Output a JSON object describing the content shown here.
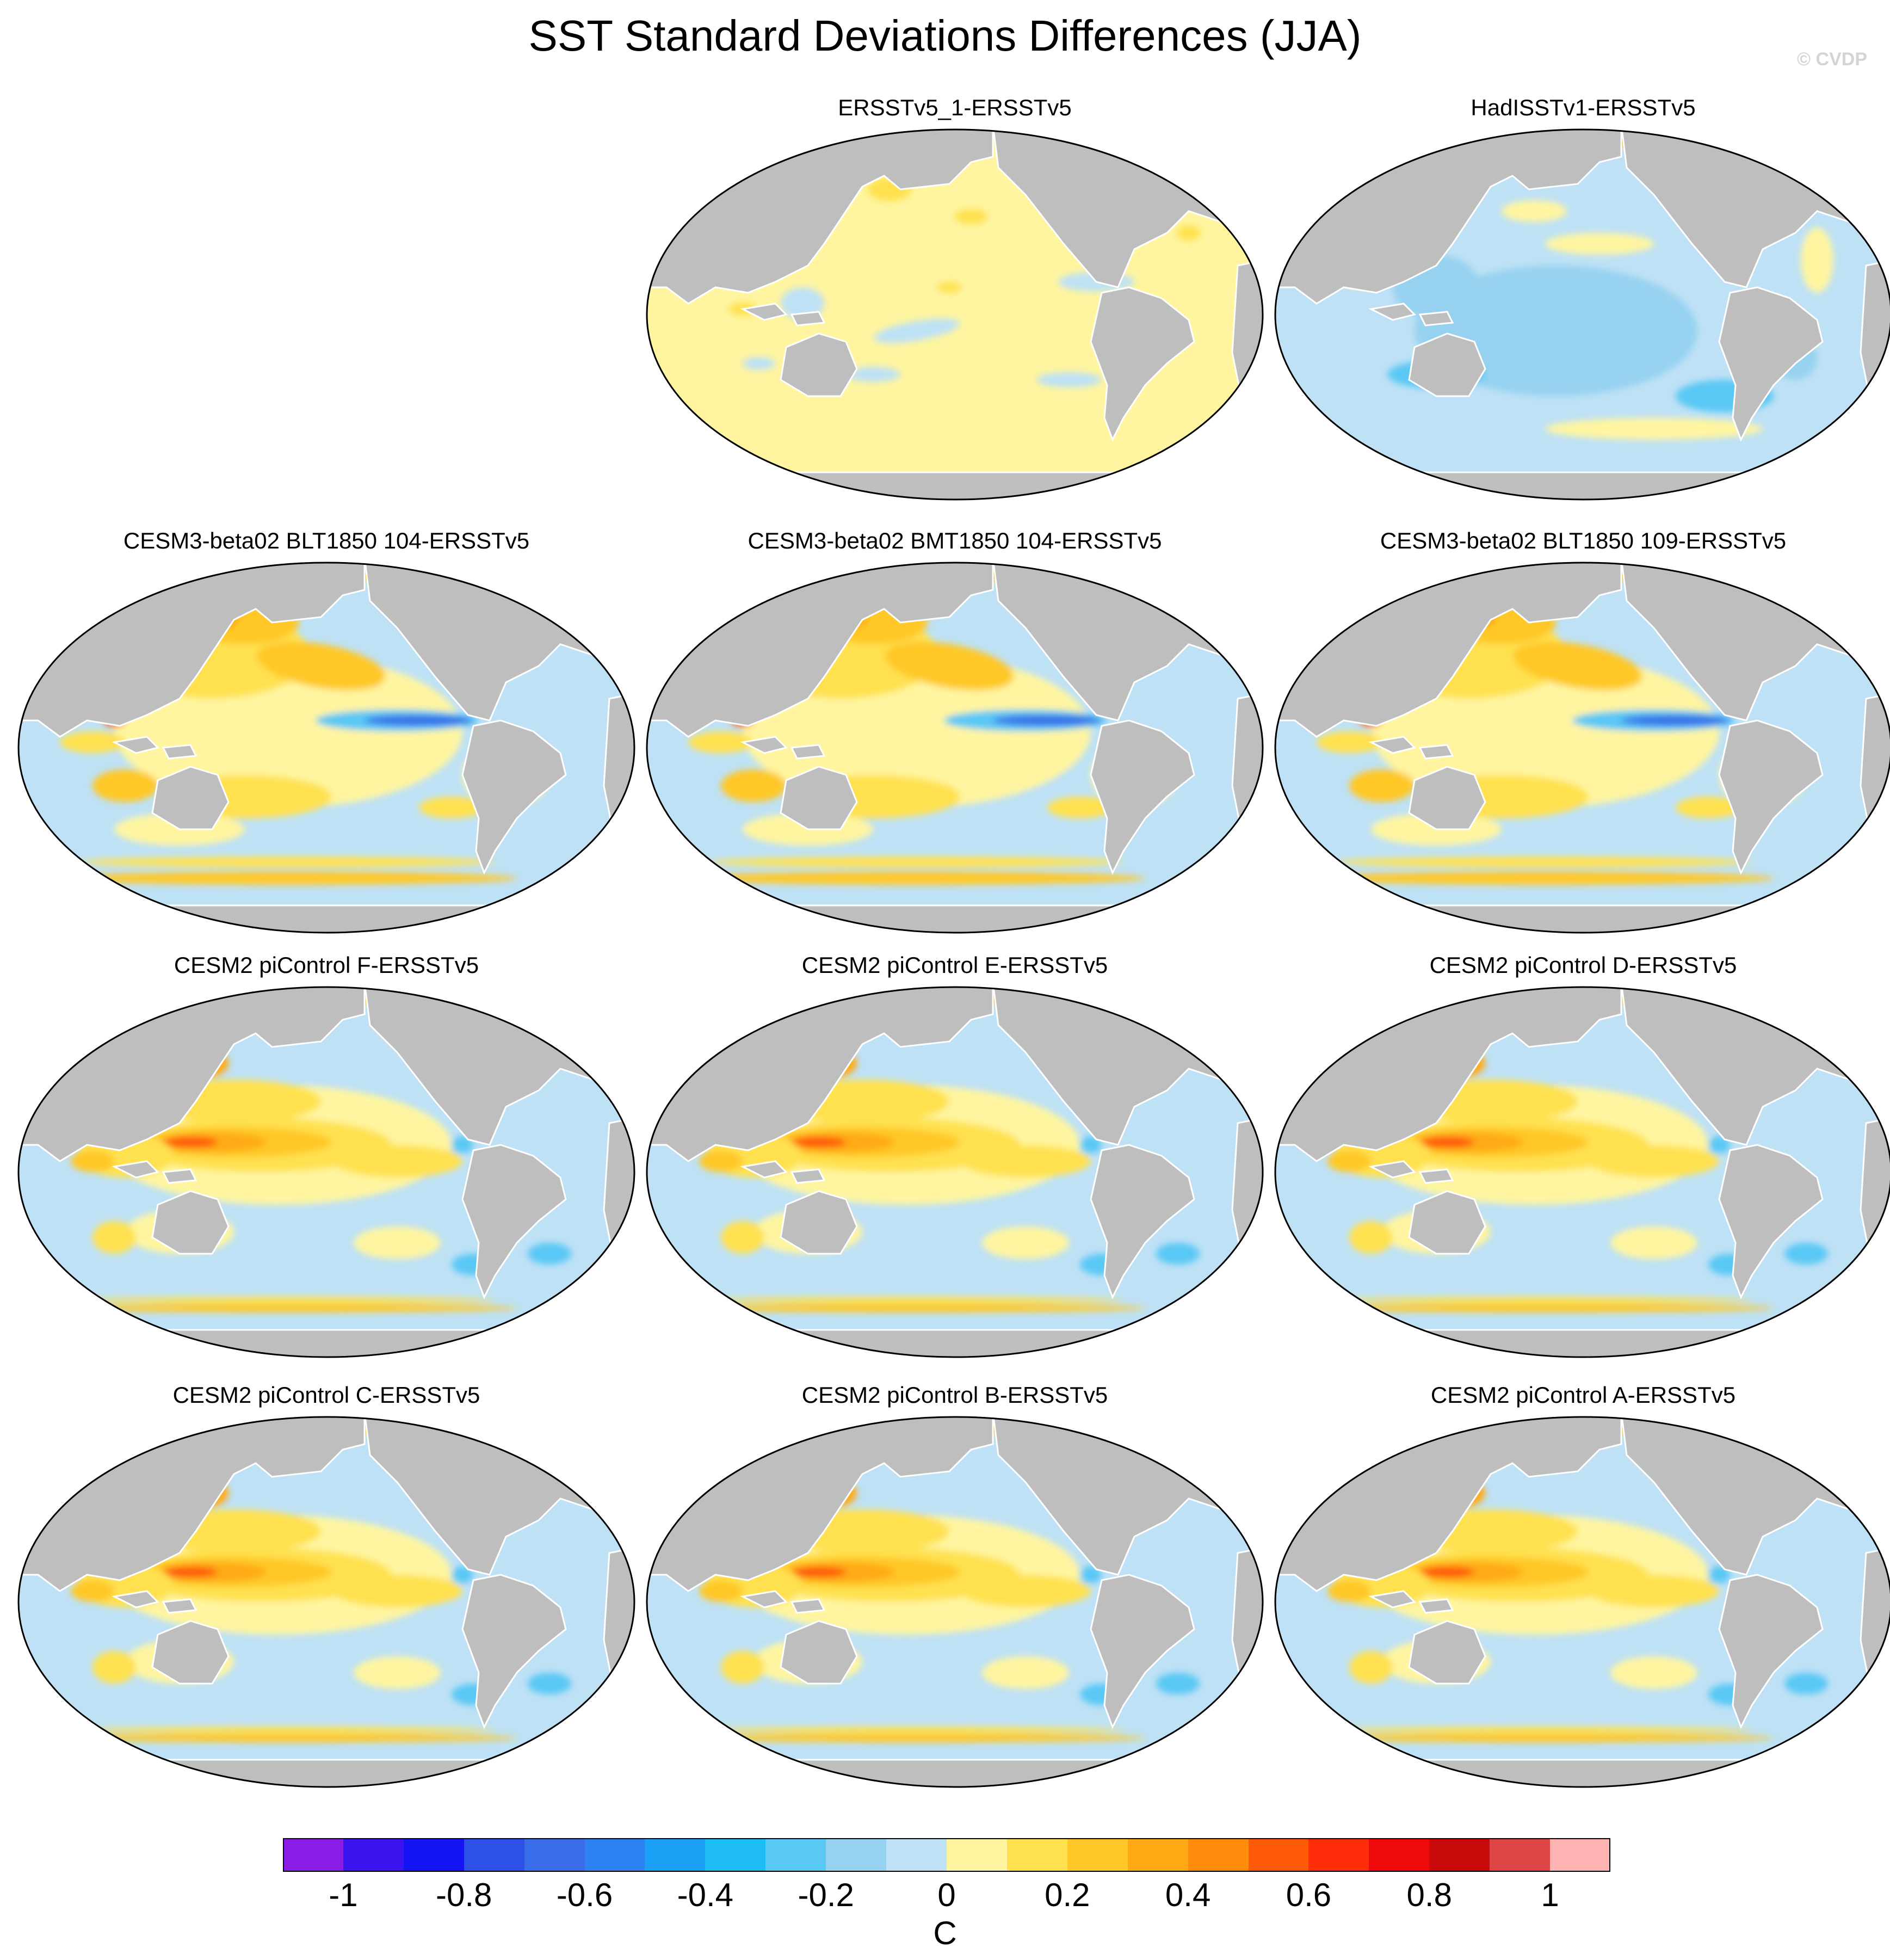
{
  "title": "SST Standard Deviations Differences (JJA)",
  "watermark": "© CVDP",
  "panels": [
    {
      "title": "ERSSTv5_1-ERSSTv5",
      "pattern": "ersst"
    },
    {
      "title": "HadISSTv1-ERSSTv5",
      "pattern": "hadisst"
    },
    {
      "title": "CESM3-beta02 BLT1850 104-ERSSTv5",
      "pattern": "cesm3"
    },
    {
      "title": "CESM3-beta02 BMT1850 104-ERSSTv5",
      "pattern": "cesm3"
    },
    {
      "title": "CESM3-beta02 BLT1850 109-ERSSTv5",
      "pattern": "cesm3"
    },
    {
      "title": "CESM2 piControl F-ERSSTv5",
      "pattern": "cesm2"
    },
    {
      "title": "CESM2 piControl E-ERSSTv5",
      "pattern": "cesm2"
    },
    {
      "title": "CESM2 piControl D-ERSSTv5",
      "pattern": "cesm2"
    },
    {
      "title": "CESM2 piControl C-ERSSTv5",
      "pattern": "cesm2"
    },
    {
      "title": "CESM2 piControl B-ERSSTv5",
      "pattern": "cesm2"
    },
    {
      "title": "CESM2 piControl A-ERSSTv5",
      "pattern": "cesm2"
    }
  ],
  "colorbar": {
    "unit": "C",
    "ticks": [
      "-1",
      "-0.8",
      "-0.6",
      "-0.4",
      "-0.2",
      "0",
      "0.2",
      "0.4",
      "0.6",
      "0.8",
      "1"
    ],
    "colors": [
      "#8a1ee6",
      "#3c14f0",
      "#1414f5",
      "#2d50e6",
      "#3a6ee8",
      "#2c82f0",
      "#1aa0f5",
      "#1ebef5",
      "#5ac8f5",
      "#96d2f0",
      "#bee1f5",
      "#fff5a0",
      "#ffe150",
      "#ffc828",
      "#ffaa14",
      "#ff8c0a",
      "#ff5a0a",
      "#ff2d0a",
      "#ee0a0a",
      "#c80a0a",
      "#dc4646",
      "#ffb4b4"
    ]
  },
  "land_color": "#bebebe"
}
